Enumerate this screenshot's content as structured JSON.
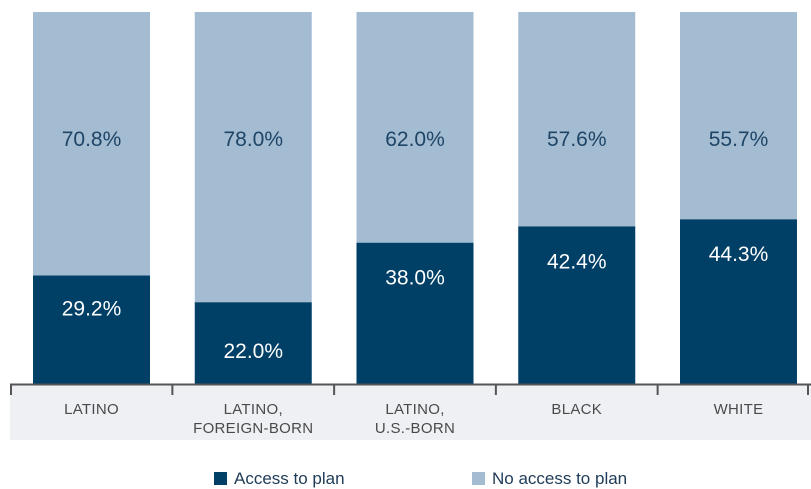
{
  "chart_data": {
    "type": "bar",
    "stacked": true,
    "categories": [
      [
        "LATINO"
      ],
      [
        "LATINO,",
        "FOREIGN-BORN"
      ],
      [
        "LATINO,",
        "U.S.-BORN"
      ],
      [
        "BLACK"
      ],
      [
        "WHITE"
      ]
    ],
    "series": [
      {
        "name": "Access to plan",
        "color": "#003f66",
        "label_color": "#ffffff",
        "values": [
          29.2,
          22.0,
          38.0,
          42.4,
          44.3
        ],
        "labels": [
          "29.2%",
          "22.0%",
          "38.0%",
          "42.4%",
          "44.3%"
        ]
      },
      {
        "name": "No access to plan",
        "color": "#a3bcd2",
        "label_color": "#1e4466",
        "values": [
          70.8,
          78.0,
          62.0,
          57.6,
          55.7
        ],
        "labels": [
          "70.8%",
          "78.0%",
          "62.0%",
          "57.6%",
          "55.7%"
        ]
      }
    ],
    "ylim": [
      0,
      100
    ],
    "grid": false,
    "legend_position": "bottom-center",
    "axis_color": "#555555",
    "category_band_color": "#eef0f3"
  }
}
